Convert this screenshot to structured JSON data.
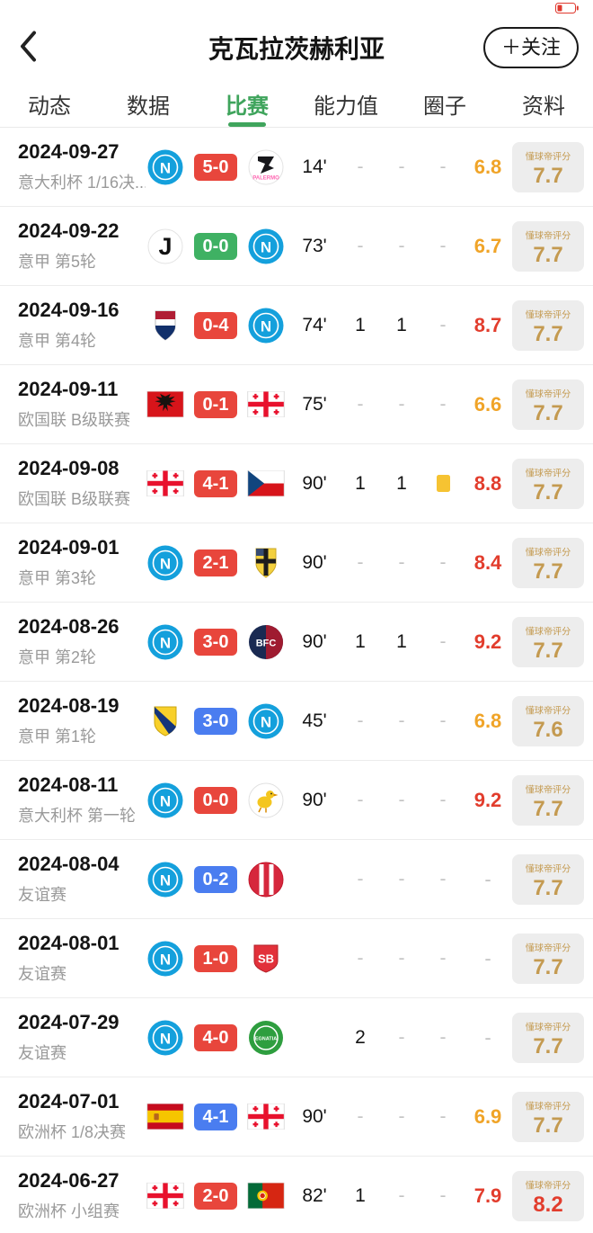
{
  "header": {
    "title": "克瓦拉茨赫利亚",
    "follow": "＋关注"
  },
  "tabs": [
    {
      "label": "动态",
      "active": false
    },
    {
      "label": "数据",
      "active": false
    },
    {
      "label": "比赛",
      "active": true
    },
    {
      "label": "能力值",
      "active": false
    },
    {
      "label": "圈子",
      "active": false
    },
    {
      "label": "资料",
      "active": false
    }
  ],
  "rating_label": "懂球帝评分",
  "colors": {
    "result": {
      "win": "#e8463c",
      "draw": "#3fb163",
      "loss": "#4a7df0"
    },
    "rating": {
      "orange": "#f0a428",
      "red": "#e23d2d"
    },
    "dqd": {
      "gold": "#c49a50",
      "red": "#e23d2d"
    },
    "dqd_label": "#c49a50",
    "tab_active": "#3fa45c"
  },
  "matches": [
    {
      "date": "2024-09-27",
      "competition": "意大利杯 1/16决...",
      "home": "napoli",
      "away": "palermo",
      "score": "5-0",
      "result": "win",
      "minutes": "14'",
      "goals": "-",
      "assists": "-",
      "card": "-",
      "rating": "6.8",
      "rating_tone": "orange",
      "dqd": "7.7",
      "dqd_tone": "gold"
    },
    {
      "date": "2024-09-22",
      "competition": "意甲 第5轮",
      "home": "juventus",
      "away": "napoli",
      "score": "0-0",
      "result": "draw",
      "minutes": "73'",
      "goals": "-",
      "assists": "-",
      "card": "-",
      "rating": "6.7",
      "rating_tone": "orange",
      "dqd": "7.7",
      "dqd_tone": "gold"
    },
    {
      "date": "2024-09-16",
      "competition": "意甲 第4轮",
      "home": "cagliari",
      "away": "napoli",
      "score": "0-4",
      "result": "win",
      "minutes": "74'",
      "goals": "1",
      "assists": "1",
      "card": "-",
      "rating": "8.7",
      "rating_tone": "red",
      "dqd": "7.7",
      "dqd_tone": "gold"
    },
    {
      "date": "2024-09-11",
      "competition": "欧国联 B级联赛",
      "home": "albania",
      "away": "georgia",
      "score": "0-1",
      "result": "win",
      "minutes": "75'",
      "goals": "-",
      "assists": "-",
      "card": "-",
      "rating": "6.6",
      "rating_tone": "orange",
      "dqd": "7.7",
      "dqd_tone": "gold"
    },
    {
      "date": "2024-09-08",
      "competition": "欧国联 B级联赛",
      "home": "georgia",
      "away": "czech",
      "score": "4-1",
      "result": "win",
      "minutes": "90'",
      "goals": "1",
      "assists": "1",
      "card": "yellow",
      "rating": "8.8",
      "rating_tone": "red",
      "dqd": "7.7",
      "dqd_tone": "gold"
    },
    {
      "date": "2024-09-01",
      "competition": "意甲 第3轮",
      "home": "napoli",
      "away": "parma",
      "score": "2-1",
      "result": "win",
      "minutes": "90'",
      "goals": "-",
      "assists": "-",
      "card": "-",
      "rating": "8.4",
      "rating_tone": "red",
      "dqd": "7.7",
      "dqd_tone": "gold"
    },
    {
      "date": "2024-08-26",
      "competition": "意甲 第2轮",
      "home": "napoli",
      "away": "bologna",
      "score": "3-0",
      "result": "win",
      "minutes": "90'",
      "goals": "1",
      "assists": "1",
      "card": "-",
      "rating": "9.2",
      "rating_tone": "red",
      "dqd": "7.7",
      "dqd_tone": "gold"
    },
    {
      "date": "2024-08-19",
      "competition": "意甲 第1轮",
      "home": "verona",
      "away": "napoli",
      "score": "3-0",
      "result": "loss",
      "minutes": "45'",
      "goals": "-",
      "assists": "-",
      "card": "-",
      "rating": "6.8",
      "rating_tone": "orange",
      "dqd": "7.6",
      "dqd_tone": "gold"
    },
    {
      "date": "2024-08-11",
      "competition": "意大利杯 第一轮",
      "home": "napoli",
      "away": "modena",
      "score": "0-0",
      "result": "win",
      "minutes": "90'",
      "goals": "-",
      "assists": "-",
      "card": "-",
      "rating": "9.2",
      "rating_tone": "red",
      "dqd": "7.7",
      "dqd_tone": "gold"
    },
    {
      "date": "2024-08-04",
      "competition": "友谊赛",
      "home": "napoli",
      "away": "girona",
      "score": "0-2",
      "result": "loss",
      "minutes": "",
      "goals": "-",
      "assists": "-",
      "card": "-",
      "rating": "-",
      "rating_tone": "none",
      "dqd": "7.7",
      "dqd_tone": "gold"
    },
    {
      "date": "2024-08-01",
      "competition": "友谊赛",
      "home": "napoli",
      "away": "brest",
      "score": "1-0",
      "result": "win",
      "minutes": "",
      "goals": "-",
      "assists": "-",
      "card": "-",
      "rating": "-",
      "rating_tone": "none",
      "dqd": "7.7",
      "dqd_tone": "gold"
    },
    {
      "date": "2024-07-29",
      "competition": "友谊赛",
      "home": "napoli",
      "away": "egnatia",
      "score": "4-0",
      "result": "win",
      "minutes": "",
      "goals": "2",
      "assists": "-",
      "card": "-",
      "rating": "-",
      "rating_tone": "none",
      "dqd": "7.7",
      "dqd_tone": "gold"
    },
    {
      "date": "2024-07-01",
      "competition": "欧洲杯 1/8决赛",
      "home": "spain",
      "away": "georgia",
      "score": "4-1",
      "result": "loss",
      "minutes": "90'",
      "goals": "-",
      "assists": "-",
      "card": "-",
      "rating": "6.9",
      "rating_tone": "orange",
      "dqd": "7.7",
      "dqd_tone": "gold"
    },
    {
      "date": "2024-06-27",
      "competition": "欧洲杯 小组赛",
      "home": "georgia",
      "away": "portugal",
      "score": "2-0",
      "result": "win",
      "minutes": "82'",
      "goals": "1",
      "assists": "-",
      "card": "-",
      "rating": "7.9",
      "rating_tone": "red",
      "dqd": "8.2",
      "dqd_tone": "red"
    }
  ]
}
